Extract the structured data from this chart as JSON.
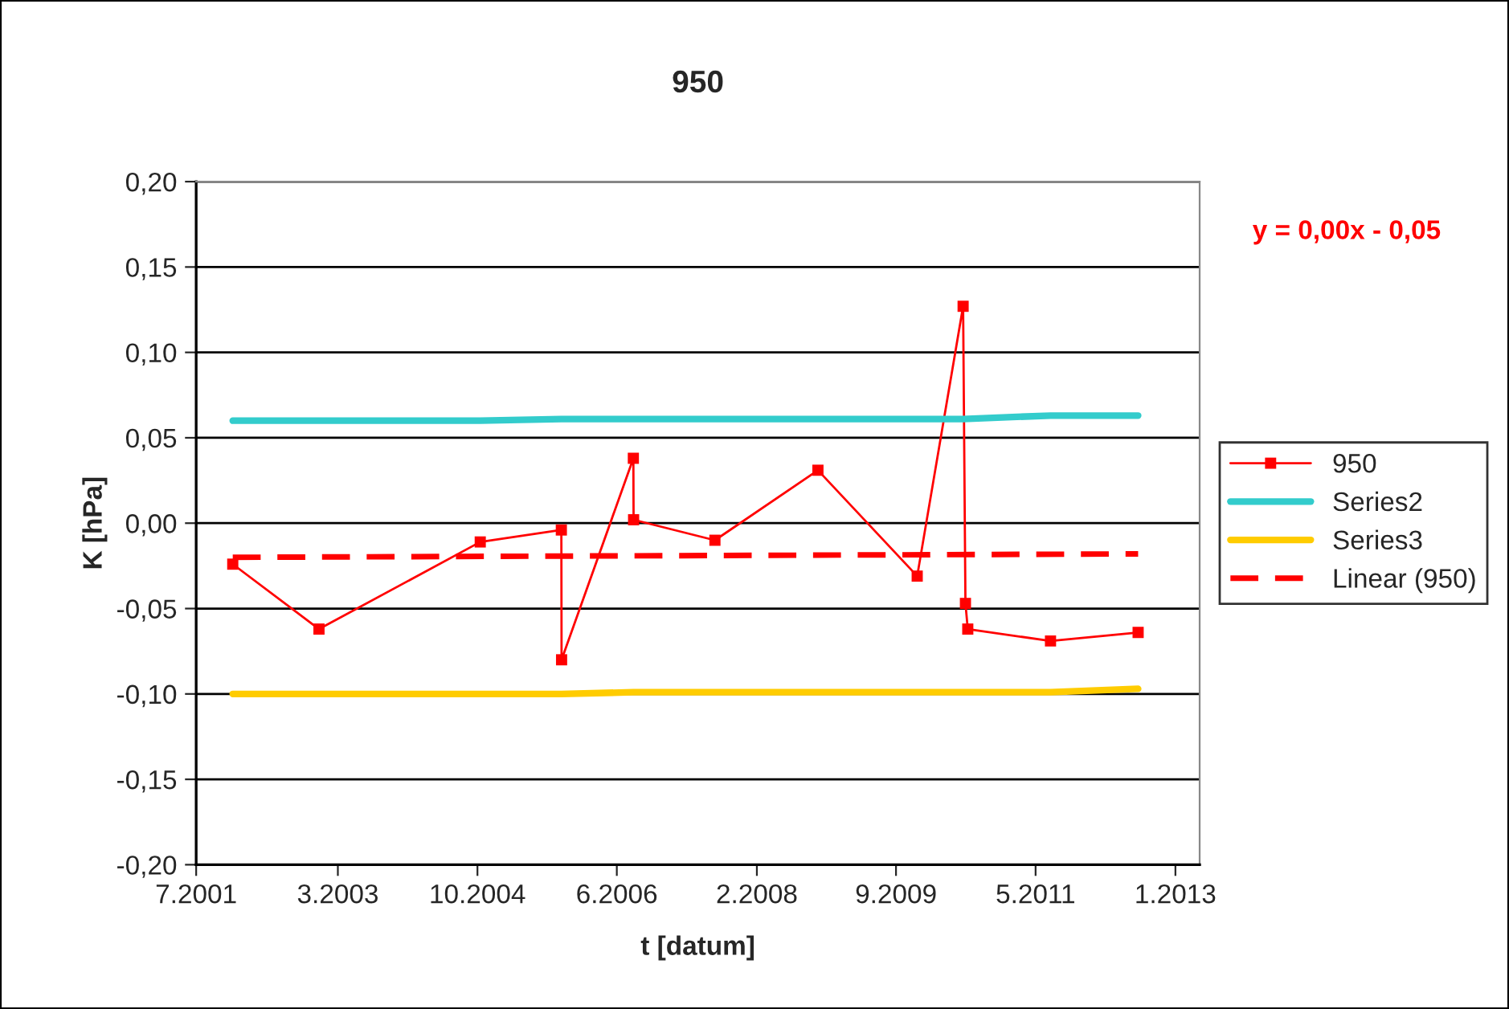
{
  "chart_data": {
    "type": "line",
    "title": "950",
    "xlabel": "t [datum]",
    "ylabel": "K [hPa]",
    "annotations": [
      "y = 0,00x - 0,05"
    ],
    "series": [
      {
        "name": "950",
        "color": "#ff0000",
        "marker": "square",
        "x": [
          "2001-12-05",
          "2002-12-10",
          "2004-11-01",
          "2005-10-15",
          "2005-10-16",
          "2006-08-20",
          "2006-08-21",
          "2007-08-05",
          "2008-10-20",
          "2009-12-20",
          "2010-07-05",
          "2010-07-15",
          "2010-07-25",
          "2011-07-15",
          "2012-07-25"
        ],
        "values": [
          -0.024,
          -0.062,
          -0.011,
          -0.004,
          -0.08,
          0.038,
          0.002,
          -0.01,
          0.031,
          -0.031,
          0.127,
          -0.047,
          -0.062,
          -0.069,
          -0.064
        ]
      },
      {
        "name": "Series2",
        "color": "#33cccc",
        "x": [
          "2001-12-05",
          "2004-11-01",
          "2005-10-15",
          "2010-07-05",
          "2011-07-15",
          "2012-07-25"
        ],
        "values": [
          0.06,
          0.06,
          0.061,
          0.061,
          0.063,
          0.063
        ]
      },
      {
        "name": "Series3",
        "color": "#ffcc00",
        "x": [
          "2001-12-05",
          "2005-10-15",
          "2006-08-20",
          "2011-07-15",
          "2012-07-25"
        ],
        "values": [
          -0.1,
          -0.1,
          -0.099,
          -0.099,
          -0.097
        ]
      },
      {
        "name": "Linear (950)",
        "color": "#ff0000",
        "line_style": "dashed",
        "x": [
          "2001-12-05",
          "2012-07-25"
        ],
        "values": [
          -0.02,
          -0.018
        ]
      }
    ],
    "xlim": [
      "2001-07-01",
      "2013-04-15"
    ],
    "xticks": [
      {
        "value": "2001-07-01",
        "label": "7.2001"
      },
      {
        "value": "2003-03-01",
        "label": "3.2003"
      },
      {
        "value": "2004-10-20",
        "label": "10.2004"
      },
      {
        "value": "2006-06-10",
        "label": "6.2006"
      },
      {
        "value": "2008-02-01",
        "label": "2.2008"
      },
      {
        "value": "2009-09-20",
        "label": "9.2009"
      },
      {
        "value": "2011-05-12",
        "label": "5.2011"
      },
      {
        "value": "2013-01-01",
        "label": "1.2013"
      }
    ],
    "ylim": [
      -0.2,
      0.2
    ],
    "yticks": [
      {
        "value": -0.2,
        "label": "-0,20"
      },
      {
        "value": -0.15,
        "label": "-0,15"
      },
      {
        "value": -0.1,
        "label": "-0,10"
      },
      {
        "value": -0.05,
        "label": "-0,05"
      },
      {
        "value": 0,
        "label": "0,00"
      },
      {
        "value": 0.05,
        "label": "0,05"
      },
      {
        "value": 0.1,
        "label": "0,10"
      },
      {
        "value": 0.15,
        "label": "0,15"
      },
      {
        "value": 0.2,
        "label": "0,20"
      }
    ],
    "grid": "y",
    "legend": "right"
  }
}
